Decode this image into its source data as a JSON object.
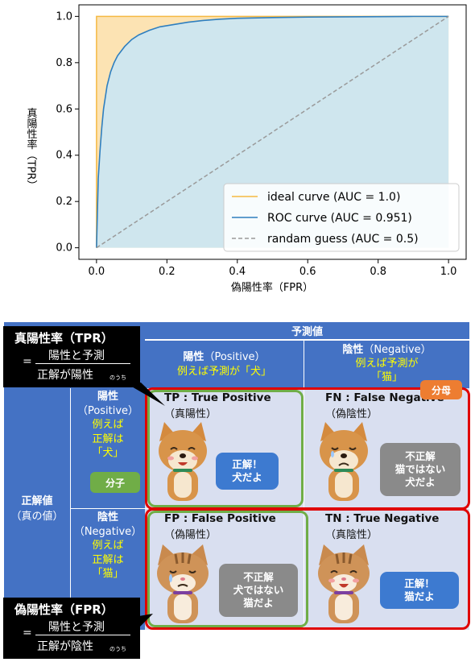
{
  "chart_data": {
    "type": "line",
    "xlabel": "偽陽性率（FPR）",
    "ylabel": "真陽性率（TPR）",
    "xlim": [
      -0.05,
      1.05
    ],
    "ylim": [
      -0.05,
      1.05
    ],
    "xticks": [
      "0.0",
      "0.2",
      "0.4",
      "0.6",
      "0.8",
      "1.0"
    ],
    "yticks": [
      "0.0",
      "0.2",
      "0.4",
      "0.6",
      "0.8",
      "1.0"
    ],
    "grid": false,
    "legend_position": "bottom-right",
    "series": [
      {
        "name": "ideal curve (AUC = 1.0)",
        "color": "#f5b942",
        "fill": "#fce3b3",
        "style": "solid",
        "x": [
          0.0,
          0.0,
          1.0
        ],
        "y": [
          0.0,
          1.0,
          1.0
        ]
      },
      {
        "name": "ROC curve (AUC = 0.951)",
        "color": "#2f7fbf",
        "fill": "#cfe6ee",
        "style": "solid",
        "x": [
          0.0,
          0.005,
          0.01,
          0.015,
          0.02,
          0.03,
          0.04,
          0.05,
          0.06,
          0.08,
          0.1,
          0.12,
          0.15,
          0.18,
          0.22,
          0.26,
          0.3,
          0.35,
          0.4,
          0.5,
          0.6,
          0.7,
          0.8,
          0.9,
          1.0
        ],
        "y": [
          0.0,
          0.3,
          0.42,
          0.52,
          0.6,
          0.7,
          0.76,
          0.8,
          0.83,
          0.87,
          0.9,
          0.92,
          0.94,
          0.955,
          0.965,
          0.975,
          0.982,
          0.988,
          0.992,
          0.995,
          0.997,
          0.998,
          0.999,
          1.0,
          1.0
        ]
      },
      {
        "name": "randam guess (AUC = 0.5)",
        "color": "#9a9a9a",
        "style": "dashed",
        "x": [
          0.0,
          1.0
        ],
        "y": [
          0.0,
          1.0
        ]
      }
    ]
  },
  "matrix": {
    "pred_header": "予測値",
    "pred_pos": {
      "title": "陽性",
      "en": "（Positive）",
      "ex": "例えば予測が「犬」"
    },
    "pred_neg": {
      "title": "陰性",
      "en": "（Negative）",
      "ex1": "例えば予測が",
      "ex2": "「猫」"
    },
    "actual_header": "正解値",
    "actual_sub": "（真の値）",
    "act_pos": {
      "title": "陽性",
      "en": "（Positive）",
      "l1": "例えば",
      "l2": "正解は",
      "l3": "「犬」"
    },
    "act_neg": {
      "title": "陰性",
      "en": "（Negative）",
      "l1": "例えば",
      "l2": "正解は",
      "l3": "「猫」"
    },
    "tp": {
      "title": "TP : True Positive",
      "sub": "（真陽性）",
      "bubble1": "正解！",
      "bubble2": "犬だよ"
    },
    "fn": {
      "title": "FN : False Negative",
      "sub": "（偽陰性）",
      "bubble1": "不正解",
      "bubble2": "猫ではない",
      "bubble3": "犬だよ"
    },
    "fp": {
      "title": "FP : False Positive",
      "sub": "（偽陽性）",
      "bubble1": "不正解",
      "bubble2": "犬ではない",
      "bubble3": "猫だよ"
    },
    "tn": {
      "title": "TN : True Negative",
      "sub": "（真陰性）",
      "bubble1": "正解！",
      "bubble2": "猫だよ"
    },
    "tag_numerator": "分子",
    "tag_denominator": "分母"
  },
  "tpr_def": {
    "title": "真陽性率（TPR）",
    "eq": "=",
    "num": "陽性と予測",
    "den": "正解が陽性",
    "note": "のうち"
  },
  "fpr_def": {
    "title": "偽陽性率（FPR）",
    "eq": "=",
    "num": "陽性と予測",
    "den": "正解が陰性",
    "note": "のうち"
  },
  "colors": {
    "header_blue": "#4472c4",
    "cell_lavender": "#d9dff0",
    "frame_green": "#70ad47",
    "frame_red": "#e00000",
    "tag_green": "#70ad47",
    "tag_orange": "#ed7d31"
  }
}
